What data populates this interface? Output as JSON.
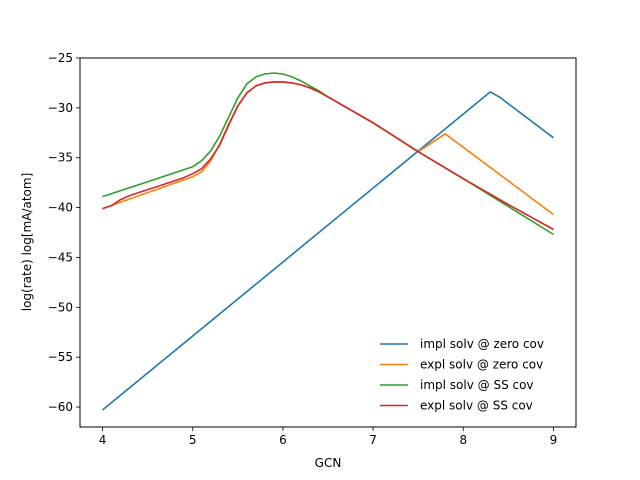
{
  "chart_data": {
    "type": "line",
    "title": "",
    "xlabel": "GCN",
    "ylabel": "log(rate) log[mA/atom]",
    "xlim": [
      3.75,
      9.25
    ],
    "ylim": [
      -62,
      -25
    ],
    "xticks": [
      4,
      5,
      6,
      7,
      8,
      9
    ],
    "yticks": [
      -60,
      -55,
      -50,
      -45,
      -40,
      -35,
      -30,
      -25
    ],
    "xtick_labels": [
      "4",
      "5",
      "6",
      "7",
      "8",
      "9"
    ],
    "ytick_labels": [
      "−60",
      "−55",
      "−50",
      "−45",
      "−40",
      "−35",
      "−30",
      "−25"
    ],
    "grid": false,
    "legend": "lower-right",
    "series": [
      {
        "name": "impl solv @ zero cov",
        "color": "#1f77b4",
        "x": [
          4.0,
          8.3,
          8.4,
          9.0
        ],
        "y": [
          -60.3,
          -28.4,
          -28.9,
          -33.0
        ]
      },
      {
        "name": "expl solv @ zero cov",
        "color": "#ff7f0e",
        "x": [
          4.0,
          5.0,
          5.1,
          5.2,
          5.3,
          5.4,
          5.5,
          5.6,
          5.7,
          5.8,
          5.9,
          6.0,
          6.1,
          6.2,
          6.3,
          6.4,
          6.5,
          7.0,
          7.5,
          7.75,
          7.8,
          9.0
        ],
        "y": [
          -40.1,
          -36.9,
          -36.4,
          -35.3,
          -33.6,
          -31.6,
          -29.8,
          -28.5,
          -27.8,
          -27.5,
          -27.4,
          -27.4,
          -27.5,
          -27.7,
          -28.0,
          -28.4,
          -28.9,
          -31.5,
          -34.4,
          -32.9,
          -32.6,
          -40.7
        ]
      },
      {
        "name": "impl solv @ SS cov",
        "color": "#2ca02c",
        "x": [
          4.0,
          4.2,
          4.4,
          4.6,
          4.8,
          5.0,
          5.1,
          5.2,
          5.3,
          5.4,
          5.5,
          5.6,
          5.7,
          5.8,
          5.9,
          6.0,
          6.1,
          6.2,
          6.3,
          6.4,
          6.5,
          7.0,
          7.5,
          8.0,
          8.5,
          9.0
        ],
        "y": [
          -38.9,
          -38.3,
          -37.7,
          -37.1,
          -36.5,
          -35.9,
          -35.3,
          -34.3,
          -32.8,
          -30.9,
          -29.0,
          -27.6,
          -26.9,
          -26.6,
          -26.5,
          -26.6,
          -26.9,
          -27.3,
          -27.8,
          -28.3,
          -28.9,
          -31.5,
          -34.4,
          -37.1,
          -39.9,
          -42.7
        ]
      },
      {
        "name": "expl solv @ SS cov",
        "color": "#d62728",
        "x": [
          4.0,
          4.1,
          4.2,
          4.3,
          4.4,
          4.5,
          4.6,
          4.7,
          4.8,
          4.9,
          5.0,
          5.1,
          5.2,
          5.3,
          5.4,
          5.5,
          5.6,
          5.7,
          5.8,
          5.9,
          6.0,
          6.1,
          6.2,
          6.3,
          6.4,
          6.5,
          7.0,
          7.5,
          8.0,
          8.5,
          9.0
        ],
        "y": [
          -40.1,
          -39.8,
          -39.2,
          -38.8,
          -38.5,
          -38.2,
          -37.9,
          -37.6,
          -37.3,
          -37.0,
          -36.6,
          -36.1,
          -35.1,
          -33.7,
          -31.7,
          -29.8,
          -28.5,
          -27.8,
          -27.5,
          -27.4,
          -27.4,
          -27.5,
          -27.7,
          -28.0,
          -28.4,
          -28.9,
          -31.5,
          -34.4,
          -37.1,
          -39.7,
          -42.2
        ]
      }
    ]
  }
}
